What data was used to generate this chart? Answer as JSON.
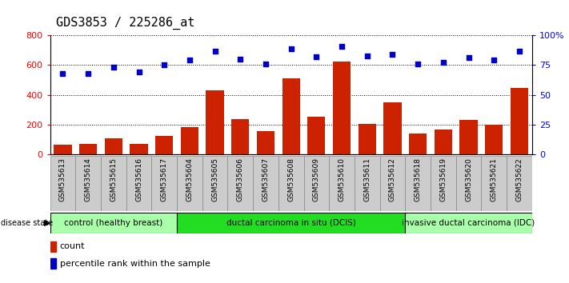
{
  "title": "GDS3853 / 225286_at",
  "samples": [
    "GSM535613",
    "GSM535614",
    "GSM535615",
    "GSM535616",
    "GSM535617",
    "GSM535604",
    "GSM535605",
    "GSM535606",
    "GSM535607",
    "GSM535608",
    "GSM535609",
    "GSM535610",
    "GSM535611",
    "GSM535612",
    "GSM535618",
    "GSM535619",
    "GSM535620",
    "GSM535621",
    "GSM535622"
  ],
  "counts": [
    65,
    70,
    105,
    72,
    125,
    185,
    430,
    235,
    155,
    510,
    255,
    625,
    205,
    350,
    140,
    165,
    230,
    200,
    445
  ],
  "percentiles": [
    68,
    68,
    73,
    69,
    75,
    79,
    87,
    80,
    76,
    89,
    82,
    91,
    83,
    84,
    76,
    77,
    81,
    79,
    87
  ],
  "groups": [
    {
      "label": "control (healthy breast)",
      "start": 0,
      "end": 5,
      "color": "#aaffaa"
    },
    {
      "label": "ductal carcinoma in situ (DCIS)",
      "start": 5,
      "end": 14,
      "color": "#22dd22"
    },
    {
      "label": "invasive ductal carcinoma (IDC)",
      "start": 14,
      "end": 19,
      "color": "#aaffaa"
    }
  ],
  "bar_color": "#cc2200",
  "dot_color": "#0000cc",
  "left_ylim": [
    0,
    800
  ],
  "right_ylim": [
    0,
    100
  ],
  "left_yticks": [
    0,
    200,
    400,
    600,
    800
  ],
  "right_yticks": [
    0,
    25,
    50,
    75,
    100
  ],
  "right_yticklabels": [
    "0",
    "25",
    "50",
    "75",
    "100%"
  ],
  "tick_label_bg": "#cccccc",
  "tick_label_border": "#888888",
  "title_fontsize": 11,
  "axis_fontsize": 8,
  "tick_fontsize": 6.5,
  "group_fontsize": 7.5,
  "legend_fontsize": 8
}
